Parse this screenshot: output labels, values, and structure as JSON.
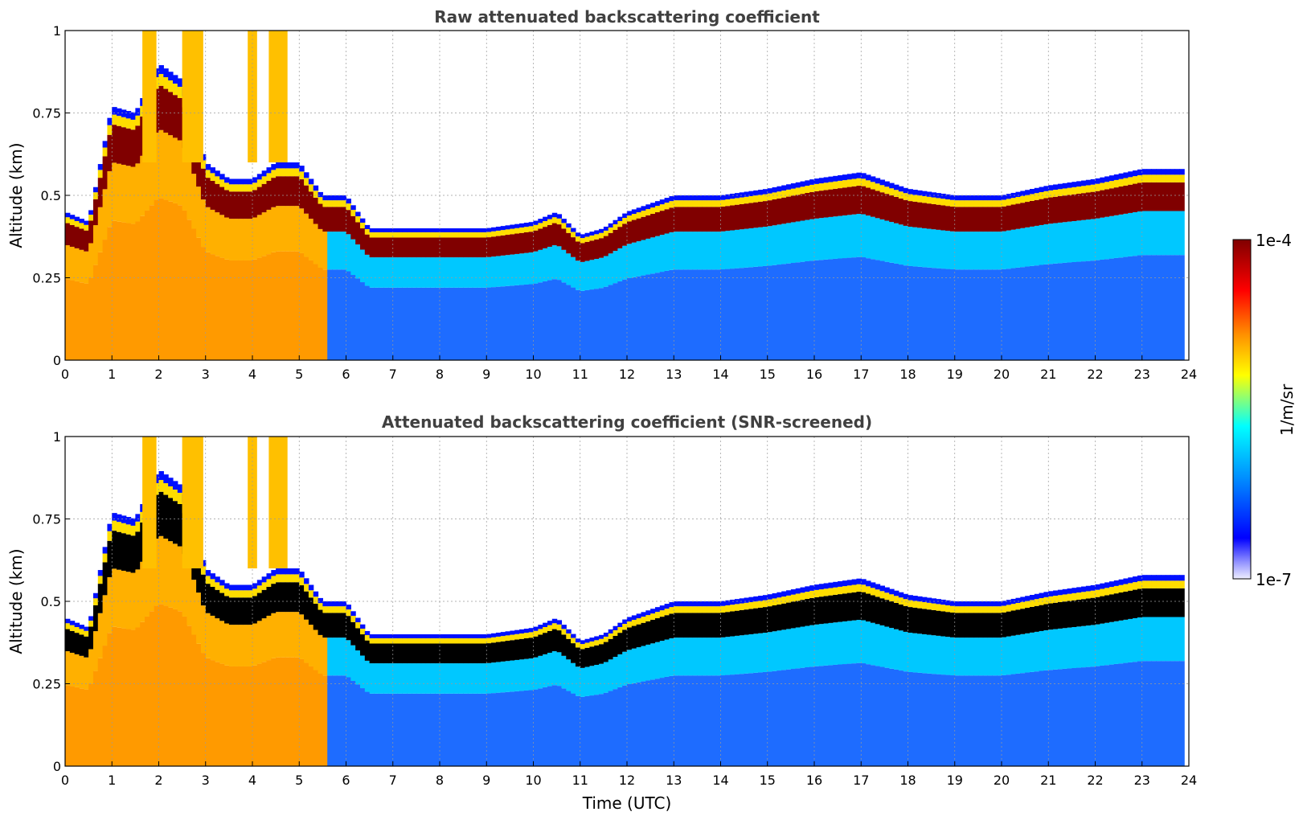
{
  "chart_data": [
    {
      "type": "heatmap",
      "title": "Raw attenuated backscattering coefficient",
      "xlabel": "",
      "ylabel": "Altitude (km)",
      "xlim": [
        0,
        24
      ],
      "ylim": [
        0,
        1
      ],
      "x_ticks": [
        "0",
        "1",
        "2",
        "3",
        "4",
        "5",
        "6",
        "7",
        "8",
        "9",
        "10",
        "11",
        "12",
        "13",
        "14",
        "15",
        "16",
        "17",
        "18",
        "19",
        "20",
        "21",
        "22",
        "23",
        "24"
      ],
      "y_ticks": [
        "0",
        "0.25",
        "0.5",
        "0.75",
        "1"
      ],
      "grid": true,
      "layer_top_km": {
        "time_utc": [
          0,
          0.5,
          1,
          1.5,
          2,
          2.5,
          3,
          3.5,
          4,
          4.5,
          5,
          5.5,
          6,
          6.5,
          7,
          8,
          9,
          10,
          10.5,
          11,
          11.5,
          12,
          13,
          14,
          15,
          16,
          17,
          18,
          19,
          20,
          21,
          22,
          23,
          23.9
        ],
        "altitude_km": [
          0.45,
          0.42,
          0.77,
          0.75,
          0.9,
          0.85,
          0.6,
          0.55,
          0.55,
          0.6,
          0.6,
          0.5,
          0.5,
          0.4,
          0.4,
          0.4,
          0.4,
          0.42,
          0.45,
          0.38,
          0.4,
          0.45,
          0.5,
          0.5,
          0.52,
          0.55,
          0.57,
          0.52,
          0.5,
          0.5,
          0.53,
          0.55,
          0.58,
          0.58
        ]
      }
    },
    {
      "type": "heatmap",
      "title": "Attenuated backscattering coefficient (SNR-screened)",
      "xlabel": "Time (UTC)",
      "ylabel": "Altitude (km)",
      "xlim": [
        0,
        24
      ],
      "ylim": [
        0,
        1
      ],
      "x_ticks": [
        "0",
        "1",
        "2",
        "3",
        "4",
        "5",
        "6",
        "7",
        "8",
        "9",
        "10",
        "11",
        "12",
        "13",
        "14",
        "15",
        "16",
        "17",
        "18",
        "19",
        "20",
        "21",
        "22",
        "23",
        "24"
      ],
      "y_ticks": [
        "0",
        "0.25",
        "0.5",
        "0.75",
        "1"
      ],
      "grid": true
    }
  ],
  "colorbar": {
    "label": "1/m/sr",
    "max_label": "1e-4",
    "min_label": "1e-7",
    "colormap": [
      "#ffffff",
      "#0000ff",
      "#00a0ff",
      "#00ffff",
      "#ffff00",
      "#ff8000",
      "#ff0000",
      "#800000"
    ]
  }
}
